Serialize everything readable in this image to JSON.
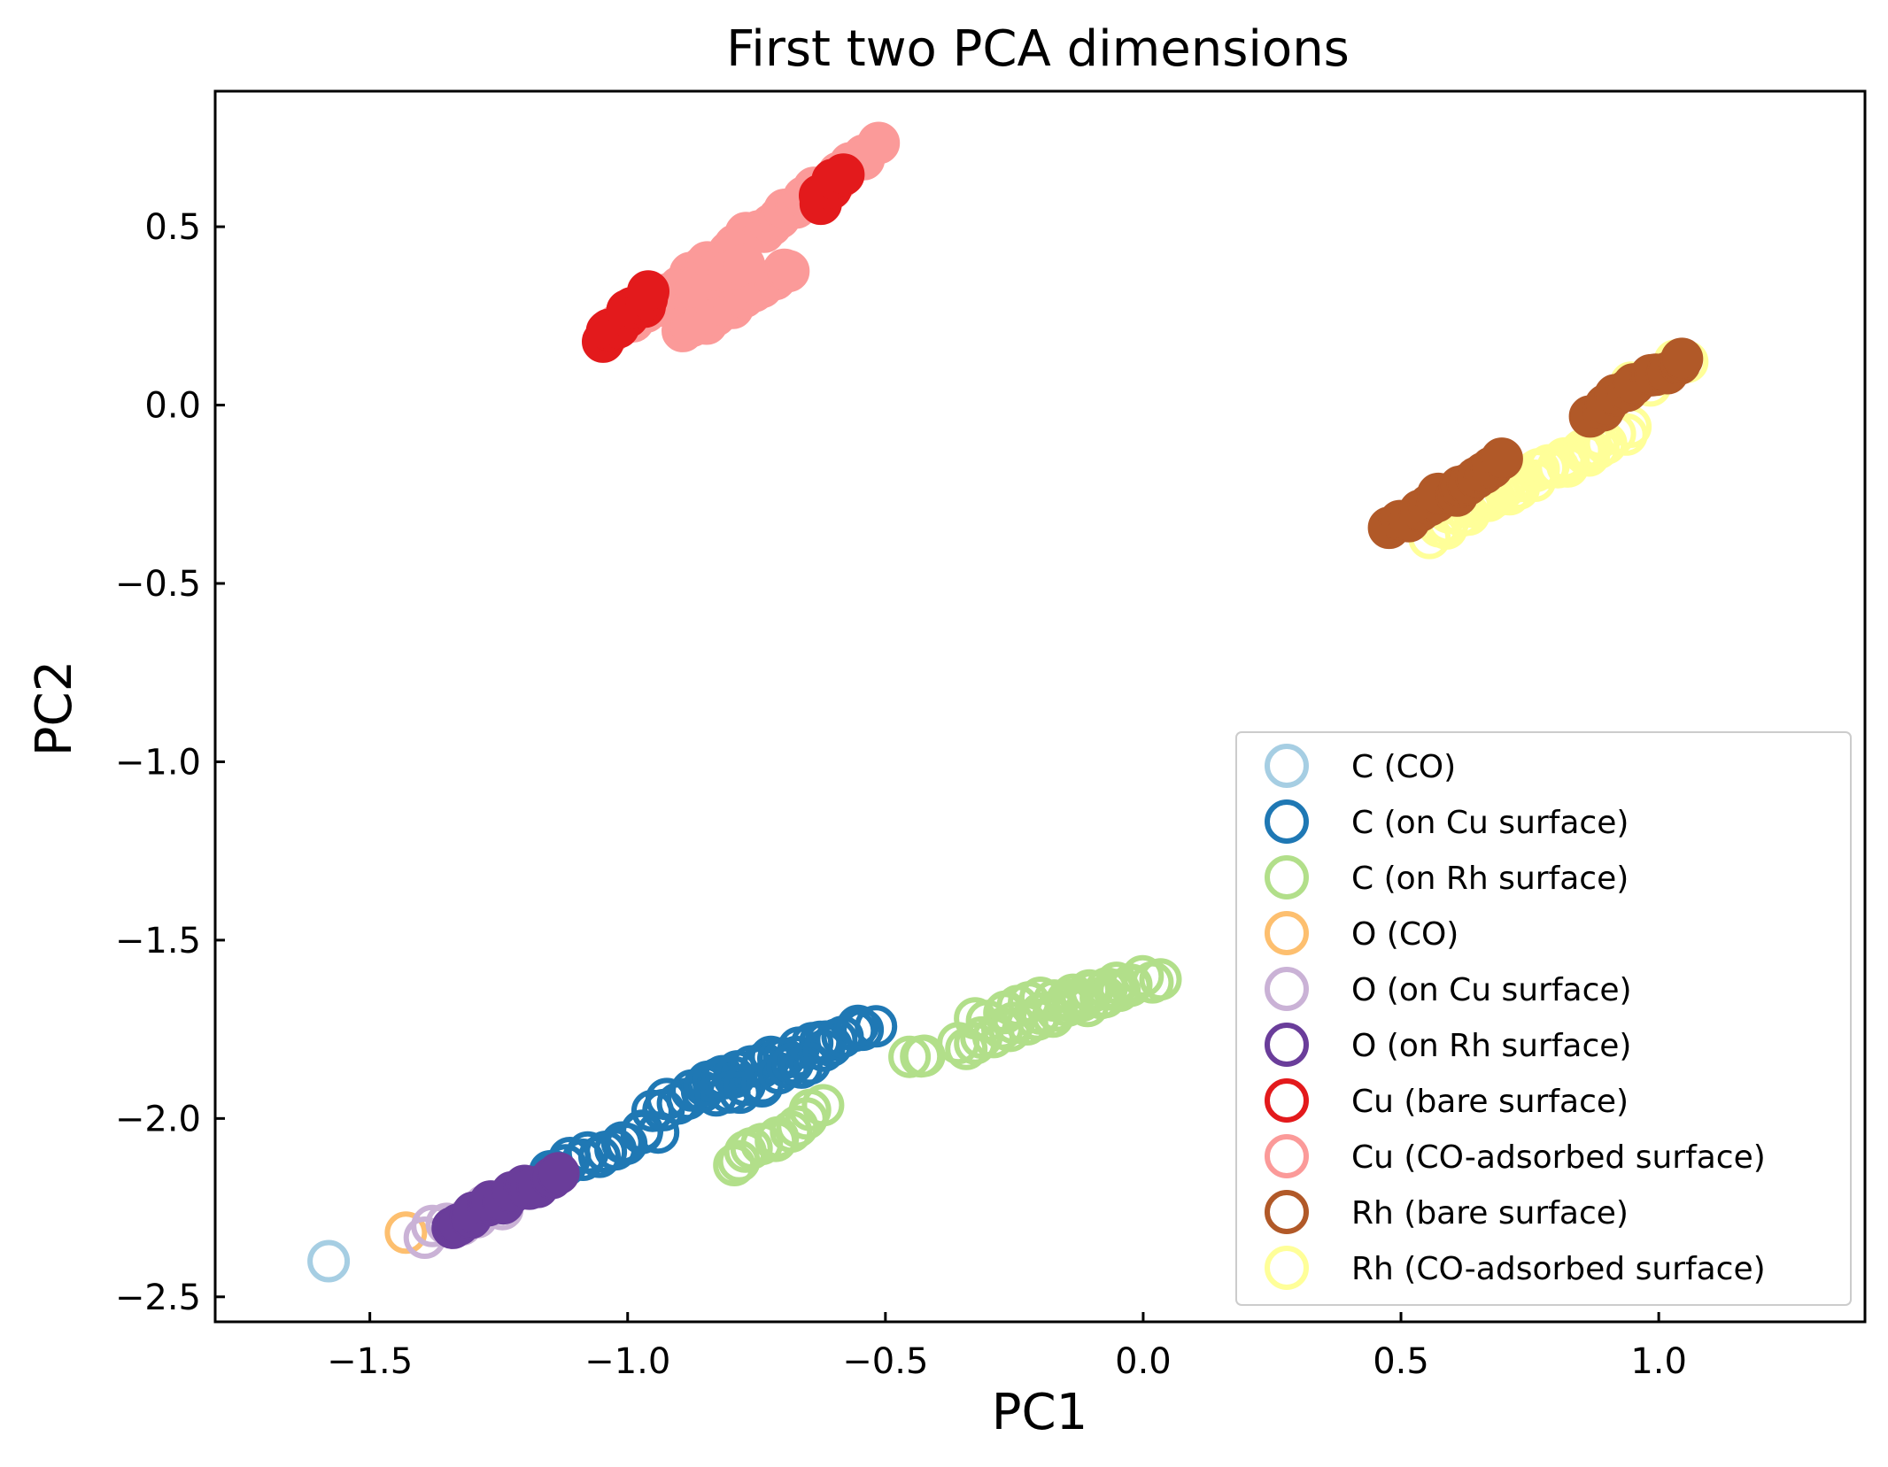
{
  "chart_data": {
    "type": "scatter",
    "title": "First two PCA dimensions",
    "xlabel": "PC1",
    "ylabel": "PC2",
    "xlim": [
      -1.8,
      1.4
    ],
    "ylim": [
      -2.57,
      0.88
    ],
    "xticks": [
      -1.5,
      -1.0,
      -0.5,
      0.0,
      0.5,
      1.0
    ],
    "xtick_labels": [
      "−1.5",
      "−1.0",
      "−0.5",
      "0.0",
      "0.5",
      "1.0"
    ],
    "yticks": [
      0.5,
      0.0,
      -0.5,
      -1.0,
      -1.5,
      -2.0,
      -2.5
    ],
    "ytick_labels": [
      "0.5",
      "0.0",
      "−0.5",
      "−1.0",
      "−1.5",
      "−2.0",
      "−2.5"
    ],
    "grid": false,
    "legend_position": "lower-right",
    "series": [
      {
        "name": "C (CO)",
        "color": "#a6cee3",
        "marker": "open-circle",
        "segments": [
          {
            "x0": -1.58,
            "y0": -2.4,
            "x1": -1.58,
            "y1": -2.4,
            "n": 1
          }
        ]
      },
      {
        "name": "C (on Cu surface)",
        "color": "#1f78b4",
        "marker": "open-circle",
        "segments": [
          {
            "x0": -1.15,
            "y0": -2.15,
            "x1": -0.95,
            "y1": -2.03,
            "n": 14
          },
          {
            "x0": -0.95,
            "y0": -1.98,
            "x1": -0.82,
            "y1": -1.9,
            "n": 9
          },
          {
            "x0": -0.85,
            "y0": -1.9,
            "x1": -0.52,
            "y1": -1.74,
            "n": 24
          },
          {
            "x0": -0.82,
            "y0": -1.95,
            "x1": -0.62,
            "y1": -1.82,
            "n": 12
          }
        ]
      },
      {
        "name": "C (on Rh surface)",
        "color": "#b2df8a",
        "marker": "open-circle",
        "segments": [
          {
            "x0": -0.8,
            "y0": -2.12,
            "x1": -0.62,
            "y1": -1.97,
            "n": 12
          },
          {
            "x0": -0.45,
            "y0": -1.84,
            "x1": -0.42,
            "y1": -1.82,
            "n": 3
          },
          {
            "x0": -0.35,
            "y0": -1.8,
            "x1": 0.03,
            "y1": -1.6,
            "n": 26
          },
          {
            "x0": -0.32,
            "y0": -1.72,
            "x1": -0.05,
            "y1": -1.62,
            "n": 14
          }
        ]
      },
      {
        "name": "O (CO)",
        "color": "#fdbf6f",
        "marker": "open-circle",
        "segments": [
          {
            "x0": -1.43,
            "y0": -2.32,
            "x1": -1.43,
            "y1": -2.32,
            "n": 1
          }
        ]
      },
      {
        "name": "O (on Cu surface)",
        "color": "#cab2d6",
        "marker": "open-circle",
        "segments": [
          {
            "x0": -1.39,
            "y0": -2.32,
            "x1": -1.25,
            "y1": -2.24,
            "n": 8
          }
        ]
      },
      {
        "name": "O (on Rh surface)",
        "color": "#6a3d9a",
        "marker": "filled-circle",
        "segments": [
          {
            "x0": -1.34,
            "y0": -2.3,
            "x1": -1.14,
            "y1": -2.16,
            "n": 14
          }
        ]
      },
      {
        "name": "Cu (CO-adsorbed surface)",
        "color": "#fb9a99",
        "marker": "filled-circle",
        "segments": [
          {
            "x0": -1.03,
            "y0": 0.2,
            "x1": -0.52,
            "y1": 0.72,
            "n": 34
          },
          {
            "x0": -0.9,
            "y0": 0.2,
            "x1": -0.68,
            "y1": 0.38,
            "n": 14
          },
          {
            "x0": -0.98,
            "y0": 0.25,
            "x1": -0.78,
            "y1": 0.4,
            "n": 10
          }
        ]
      },
      {
        "name": "Cu (bare surface)",
        "color": "#e31a1c",
        "marker": "filled-circle",
        "segments": [
          {
            "x0": -1.05,
            "y0": 0.18,
            "x1": -0.95,
            "y1": 0.32,
            "n": 10
          },
          {
            "x0": -0.63,
            "y0": 0.57,
            "x1": -0.58,
            "y1": 0.64,
            "n": 5
          }
        ]
      },
      {
        "name": "Rh (CO-adsorbed surface)",
        "color": "#ffff99",
        "marker": "open-circle",
        "segments": [
          {
            "x0": 0.55,
            "y0": -0.36,
            "x1": 0.95,
            "y1": -0.06,
            "n": 28
          },
          {
            "x0": 0.6,
            "y0": -0.3,
            "x1": 0.9,
            "y1": -0.1,
            "n": 14
          },
          {
            "x0": 0.95,
            "y0": 0.05,
            "x1": 1.05,
            "y1": 0.13,
            "n": 5
          }
        ]
      },
      {
        "name": "Rh (bare surface)",
        "color": "#b15928",
        "marker": "filled-circle",
        "segments": [
          {
            "x0": 0.48,
            "y0": -0.35,
            "x1": 0.7,
            "y1": -0.15,
            "n": 14
          },
          {
            "x0": 0.87,
            "y0": -0.02,
            "x1": 1.05,
            "y1": 0.13,
            "n": 11
          }
        ]
      }
    ],
    "legend_entries": [
      {
        "label": "C (CO)",
        "color": "#a6cee3"
      },
      {
        "label": "C (on Cu surface)",
        "color": "#1f78b4"
      },
      {
        "label": "C (on Rh surface)",
        "color": "#b2df8a"
      },
      {
        "label": "O (CO)",
        "color": "#fdbf6f"
      },
      {
        "label": "O (on Cu surface)",
        "color": "#cab2d6"
      },
      {
        "label": "O (on Rh surface)",
        "color": "#6a3d9a"
      },
      {
        "label": "Cu (bare surface)",
        "color": "#e31a1c"
      },
      {
        "label": "Cu (CO-adsorbed surface)",
        "color": "#fb9a99"
      },
      {
        "label": "Rh (bare surface)",
        "color": "#b15928"
      },
      {
        "label": "Rh (CO-adsorbed surface)",
        "color": "#ffff99"
      }
    ]
  }
}
